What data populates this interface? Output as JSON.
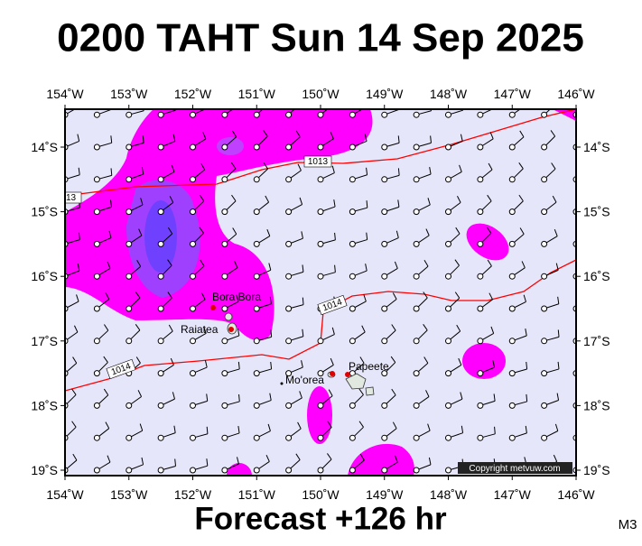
{
  "title": "0200 TAHT Sun 14 Sep 2025",
  "footer": "Forecast +126 hr",
  "copyright": "Copyright metvuw.com",
  "code": "M3",
  "lon_ticks": [
    {
      "value": -154,
      "label": "154˚W"
    },
    {
      "value": -153,
      "label": "153˚W"
    },
    {
      "value": -152,
      "label": "152˚W"
    },
    {
      "value": -151,
      "label": "151˚W"
    },
    {
      "value": -150,
      "label": "150˚W"
    },
    {
      "value": -149,
      "label": "149˚W"
    },
    {
      "value": -148,
      "label": "148˚W"
    },
    {
      "value": -147,
      "label": "147˚W"
    },
    {
      "value": -146,
      "label": "146˚W"
    }
  ],
  "lat_ticks": [
    {
      "value": -14,
      "label": "14˚S"
    },
    {
      "value": -15,
      "label": "15˚S"
    },
    {
      "value": -16,
      "label": "16˚S"
    },
    {
      "value": -17,
      "label": "17˚S"
    },
    {
      "value": -18,
      "label": "18˚S"
    },
    {
      "value": -19,
      "label": "19˚S"
    }
  ],
  "places": [
    "Bora Bora",
    "Raiatea",
    "Mo'orea",
    "Papeete"
  ],
  "isobar_labels": [
    "1013",
    "13",
    "1014",
    "1014"
  ]
}
